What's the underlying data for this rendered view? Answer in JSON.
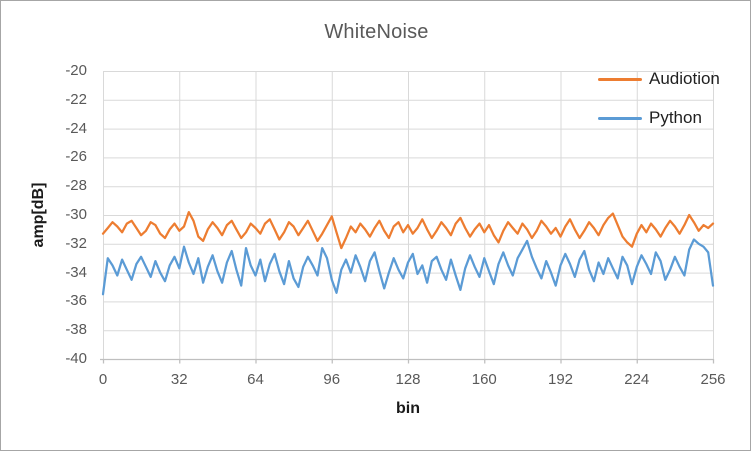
{
  "window": {
    "background": "#FFFFFF",
    "border_color": "#A6A6A6"
  },
  "chart_data": {
    "type": "line",
    "title": "WhiteNoise",
    "xlabel": "bin",
    "ylabel": "amp[dB]",
    "xlim": [
      0,
      256
    ],
    "ylim": [
      -40,
      -20
    ],
    "x_ticks": [
      0,
      32,
      64,
      96,
      128,
      160,
      192,
      224,
      256
    ],
    "y_ticks": [
      -20,
      -22,
      -24,
      -26,
      -28,
      -30,
      -32,
      -34,
      -36,
      -38,
      -40
    ],
    "grid": true,
    "legend_position": "top-right",
    "colors": {
      "gridline": "#D9D9D9",
      "axis_line": "#BFBFBF",
      "tick_label": "#595959",
      "title": "#595959",
      "axis_title": "#1A1A1A"
    },
    "x": [
      0,
      2,
      4,
      6,
      8,
      10,
      12,
      14,
      16,
      18,
      20,
      22,
      24,
      26,
      28,
      30,
      32,
      34,
      36,
      38,
      40,
      42,
      44,
      46,
      48,
      50,
      52,
      54,
      56,
      58,
      60,
      62,
      64,
      66,
      68,
      70,
      72,
      74,
      76,
      78,
      80,
      82,
      84,
      86,
      88,
      90,
      92,
      94,
      96,
      98,
      100,
      102,
      104,
      106,
      108,
      110,
      112,
      114,
      116,
      118,
      120,
      122,
      124,
      126,
      128,
      130,
      132,
      134,
      136,
      138,
      140,
      142,
      144,
      146,
      148,
      150,
      152,
      154,
      156,
      158,
      160,
      162,
      164,
      166,
      168,
      170,
      172,
      174,
      176,
      178,
      180,
      182,
      184,
      186,
      188,
      190,
      192,
      194,
      196,
      198,
      200,
      202,
      204,
      206,
      208,
      210,
      212,
      214,
      216,
      218,
      220,
      222,
      224,
      226,
      228,
      230,
      232,
      234,
      236,
      238,
      240,
      242,
      244,
      246,
      248,
      250,
      252,
      254,
      256
    ],
    "series": [
      {
        "name": "Audiotion",
        "color": "#ED7D31",
        "values": [
          -31.3,
          -30.9,
          -30.5,
          -30.8,
          -31.2,
          -30.6,
          -30.4,
          -30.9,
          -31.4,
          -31.1,
          -30.5,
          -30.7,
          -31.3,
          -31.6,
          -31.0,
          -30.6,
          -31.1,
          -30.8,
          -29.8,
          -30.4,
          -31.5,
          -31.8,
          -31.0,
          -30.5,
          -30.9,
          -31.4,
          -30.7,
          -30.4,
          -31.0,
          -31.6,
          -31.2,
          -30.6,
          -30.9,
          -31.3,
          -30.6,
          -30.3,
          -31.0,
          -31.7,
          -31.2,
          -30.5,
          -30.8,
          -31.4,
          -30.9,
          -30.4,
          -31.1,
          -31.8,
          -31.3,
          -30.7,
          -30.1,
          -31.2,
          -32.3,
          -31.6,
          -30.8,
          -31.2,
          -30.6,
          -31.0,
          -31.5,
          -30.9,
          -30.4,
          -31.1,
          -31.6,
          -30.8,
          -30.5,
          -31.2,
          -30.7,
          -31.3,
          -30.9,
          -30.3,
          -31.0,
          -31.6,
          -31.1,
          -30.5,
          -30.9,
          -31.4,
          -30.6,
          -30.2,
          -30.9,
          -31.5,
          -31.0,
          -30.6,
          -31.2,
          -30.7,
          -31.4,
          -31.9,
          -31.1,
          -30.5,
          -30.9,
          -31.3,
          -30.6,
          -31.0,
          -31.6,
          -31.1,
          -30.4,
          -30.8,
          -31.3,
          -30.9,
          -31.5,
          -30.8,
          -30.3,
          -31.0,
          -31.6,
          -31.1,
          -30.5,
          -30.9,
          -31.4,
          -30.7,
          -30.2,
          -29.9,
          -30.7,
          -31.5,
          -31.9,
          -32.2,
          -31.3,
          -30.7,
          -31.2,
          -30.6,
          -31.0,
          -31.5,
          -30.9,
          -30.4,
          -30.8,
          -31.3,
          -30.7,
          -30.0,
          -30.5,
          -31.1,
          -30.7,
          -30.9,
          -30.6
        ]
      },
      {
        "name": "Python",
        "color": "#5B9BD5",
        "values": [
          -35.5,
          -33.0,
          -33.5,
          -34.2,
          -33.1,
          -33.8,
          -34.5,
          -33.4,
          -32.9,
          -33.6,
          -34.3,
          -33.2,
          -34.0,
          -34.6,
          -33.5,
          -32.9,
          -33.7,
          -32.2,
          -33.3,
          -34.1,
          -33.0,
          -34.7,
          -33.6,
          -32.8,
          -33.9,
          -34.7,
          -33.3,
          -32.5,
          -33.8,
          -34.9,
          -32.3,
          -33.5,
          -34.2,
          -33.1,
          -34.6,
          -33.4,
          -32.7,
          -33.9,
          -34.8,
          -33.2,
          -34.4,
          -35.0,
          -33.6,
          -32.9,
          -33.5,
          -34.2,
          -32.3,
          -33.0,
          -34.5,
          -35.4,
          -33.8,
          -33.1,
          -34.0,
          -32.8,
          -33.6,
          -34.6,
          -33.2,
          -32.6,
          -33.9,
          -35.1,
          -34.0,
          -33.0,
          -33.8,
          -34.4,
          -33.3,
          -32.7,
          -34.1,
          -33.5,
          -34.7,
          -33.2,
          -32.9,
          -33.8,
          -34.5,
          -33.1,
          -34.2,
          -35.2,
          -33.7,
          -32.8,
          -33.6,
          -34.3,
          -33.0,
          -33.9,
          -34.8,
          -33.4,
          -32.6,
          -33.5,
          -34.2,
          -33.0,
          -32.4,
          -31.8,
          -32.9,
          -33.7,
          -34.4,
          -33.2,
          -34.0,
          -34.9,
          -33.5,
          -32.7,
          -33.4,
          -34.3,
          -33.1,
          -32.5,
          -33.8,
          -34.6,
          -33.3,
          -34.1,
          -33.0,
          -33.7,
          -34.4,
          -32.9,
          -33.5,
          -34.8,
          -33.6,
          -32.8,
          -33.4,
          -34.1,
          -32.6,
          -33.2,
          -34.5,
          -33.8,
          -32.9,
          -33.6,
          -34.2,
          -32.4,
          -31.7,
          -32.0,
          -32.2,
          -32.6,
          -34.9
        ]
      }
    ]
  }
}
